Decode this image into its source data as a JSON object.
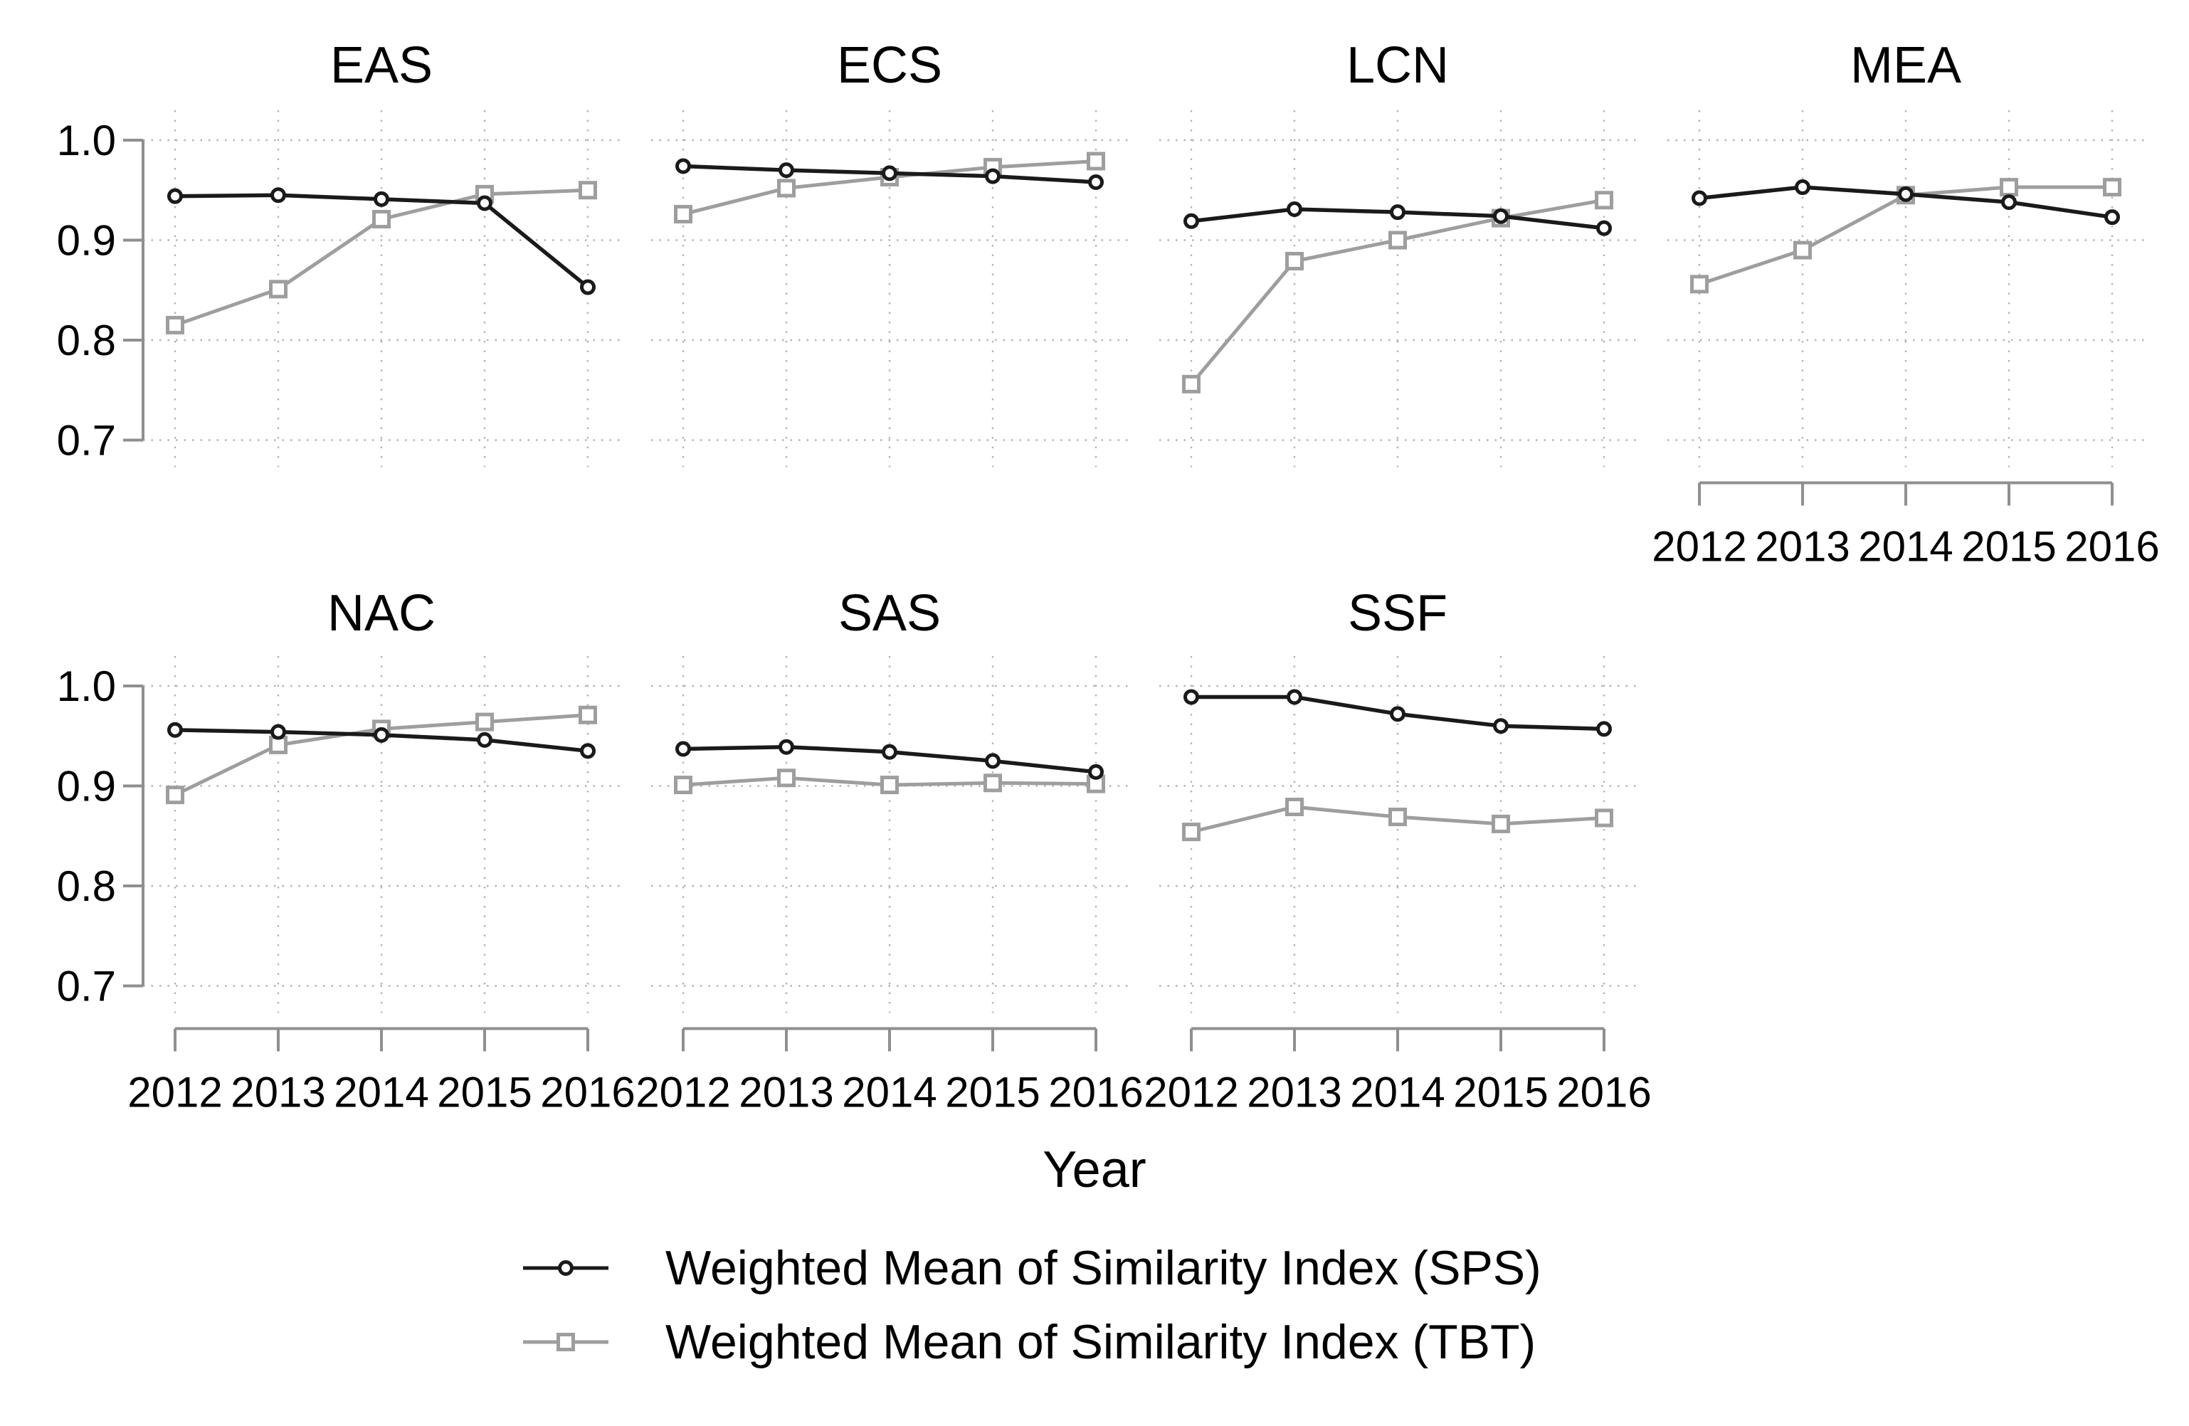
{
  "page": {
    "background": "#ffffff"
  },
  "chart_data": {
    "type": "line",
    "layout": "trellis, 2 rows x 4 cols (7 panels), shared axes",
    "x": [
      2012,
      2013,
      2014,
      2015,
      2016
    ],
    "x_ticklabels": [
      "2012",
      "2013",
      "2014",
      "2015",
      "2016"
    ],
    "y_ticks": [
      0.7,
      0.8,
      0.9,
      1.0
    ],
    "y_ticklabels": [
      "0.7",
      "0.8",
      "0.9",
      "1.0"
    ],
    "ylim": [
      0.673,
      1.03
    ],
    "xlim": [
      2011.69,
      2016.31
    ],
    "grid": "dotted",
    "xlabel": "Year",
    "series_styles": [
      {
        "name": "SPS",
        "color": "#1a1a1a",
        "marker": "circle"
      },
      {
        "name": "TBT",
        "color": "#9e9e9e",
        "marker": "square"
      }
    ],
    "legend": [
      {
        "series": "SPS",
        "label": "Weighted Mean of Similarity Index (SPS)"
      },
      {
        "series": "TBT",
        "label": "Weighted Mean of Similarity Index (TBT)"
      }
    ],
    "legend_position": "bottom",
    "axes_shown": {
      "y_labels_on": "first column of each row",
      "x_labels_on": "bottom panel of each column"
    },
    "panels": [
      {
        "title": "EAS",
        "row": 0,
        "col": 0,
        "series": {
          "SPS": [
            0.944,
            0.945,
            0.941,
            0.937,
            0.853
          ],
          "TBT": [
            0.815,
            0.851,
            0.921,
            0.946,
            0.95
          ]
        }
      },
      {
        "title": "ECS",
        "row": 0,
        "col": 1,
        "series": {
          "SPS": [
            0.974,
            0.97,
            0.967,
            0.964,
            0.958
          ],
          "TBT": [
            0.926,
            0.952,
            0.963,
            0.973,
            0.979
          ]
        }
      },
      {
        "title": "LCN",
        "row": 0,
        "col": 2,
        "series": {
          "SPS": [
            0.919,
            0.931,
            0.928,
            0.924,
            0.912
          ],
          "TBT": [
            0.756,
            0.879,
            0.9,
            0.922,
            0.94
          ]
        }
      },
      {
        "title": "MEA",
        "row": 0,
        "col": 3,
        "series": {
          "SPS": [
            0.942,
            0.953,
            0.946,
            0.938,
            0.923
          ],
          "TBT": [
            0.856,
            0.89,
            0.945,
            0.953,
            0.953
          ]
        }
      },
      {
        "title": "NAC",
        "row": 1,
        "col": 0,
        "series": {
          "SPS": [
            0.956,
            0.954,
            0.951,
            0.946,
            0.935
          ],
          "TBT": [
            0.891,
            0.941,
            0.957,
            0.964,
            0.971
          ]
        }
      },
      {
        "title": "SAS",
        "row": 1,
        "col": 1,
        "series": {
          "SPS": [
            0.937,
            0.939,
            0.934,
            0.925,
            0.914
          ],
          "TBT": [
            0.901,
            0.908,
            0.901,
            0.903,
            0.902
          ]
        }
      },
      {
        "title": "SSF",
        "row": 1,
        "col": 2,
        "series": {
          "SPS": [
            0.989,
            0.989,
            0.972,
            0.96,
            0.957
          ],
          "TBT": [
            0.854,
            0.879,
            0.869,
            0.862,
            0.868
          ]
        }
      }
    ],
    "colors": {
      "grid": "#b4b4b4",
      "axis": "#8f8f8f",
      "tick_label": "#000000"
    }
  }
}
